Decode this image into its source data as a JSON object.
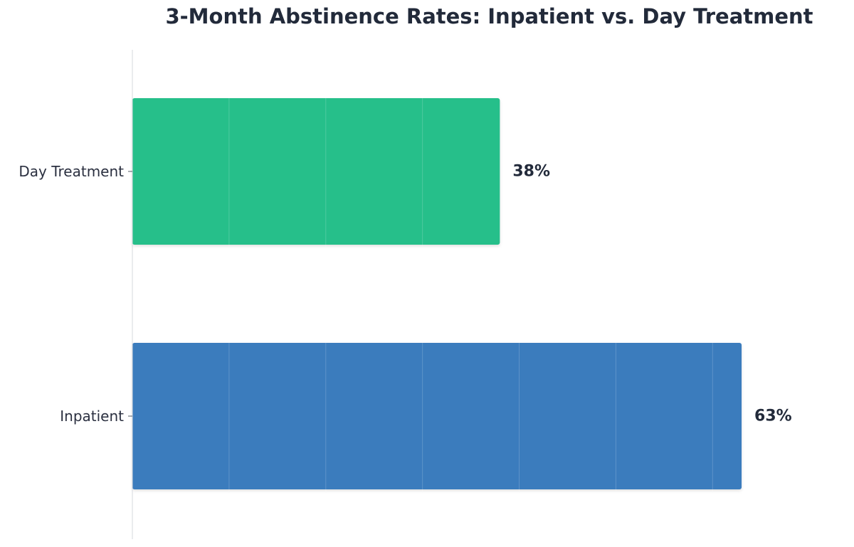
{
  "chart_data": {
    "type": "bar",
    "orientation": "horizontal",
    "title": "3-Month Abstinence Rates: Inpatient vs. Day Treatment",
    "xlabel": "",
    "ylabel": "",
    "categories": [
      "Day Treatment",
      "Inpatient"
    ],
    "values": [
      38,
      63
    ],
    "value_labels": [
      "38%",
      "63%"
    ],
    "colors": [
      "#27bf8a",
      "#3a7bbd"
    ],
    "xlim": [
      0,
      68
    ],
    "grid": true,
    "legend": "none"
  }
}
